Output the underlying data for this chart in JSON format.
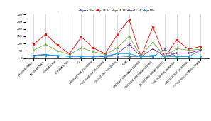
{
  "legend_labels": [
    "years25≤",
    "yrs35-26",
    "yrs45-36",
    "yrs55-46",
    "yrs58≤"
  ],
  "legend_colors": [
    "#4472c4",
    "#ff0000",
    "#70ad47",
    "#7030a0",
    "#00b0f0"
  ],
  "categories": [
    "{YES}INHERITANCE",
    "{NO}INHERITANCE",
    "↑INCREASE RISK",
    "↓DECREASE RISK",
    "~SG",
    "{INCREASE RISK }CHILDBIRTH",
    "{DECREASE RISK }CHILDBIRTH",
    "{DO NOTHING }CHILDBIRTH",
    "TOTAL",
    "{INCREASE RISK }BREASTFEEDING",
    "{DECREASE RISK }BREASTFEEDING",
    "{DO NOTHING }BREASTFEEDING",
    "↑INCREASE RISK {HORMONAL",
    "↓DECREASE RISK {HORMONAL",
    "{DO NOTHING}HORMONAL USAGE"
  ],
  "series": {
    "years25≤": [
      15,
      20,
      15,
      15,
      10,
      15,
      10,
      15,
      10,
      10,
      10,
      60,
      10,
      10,
      55
    ],
    "yrs35-26": [
      95,
      165,
      90,
      30,
      145,
      70,
      30,
      160,
      265,
      10,
      215,
      10,
      125,
      60,
      80
    ],
    "yrs45-36": [
      55,
      95,
      50,
      25,
      70,
      45,
      25,
      70,
      150,
      15,
      110,
      10,
      65,
      55,
      60
    ],
    "yrs55-46": [
      20,
      25,
      15,
      15,
      15,
      15,
      10,
      30,
      95,
      10,
      65,
      10,
      35,
      35,
      55
    ],
    "yrs58≤": [
      15,
      20,
      20,
      10,
      15,
      10,
      15,
      30,
      30,
      10,
      20,
      10,
      10,
      15,
      15
    ]
  },
  "ylim": [
    0,
    300
  ],
  "yticks": [
    0,
    50,
    100,
    150,
    200,
    250,
    300
  ],
  "grid_color": "#c0c0c0"
}
